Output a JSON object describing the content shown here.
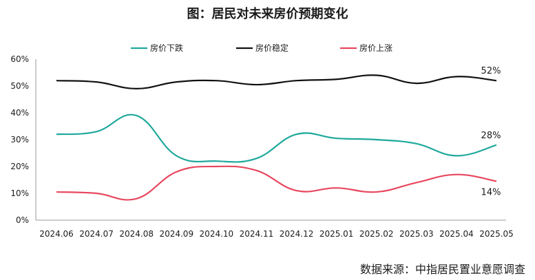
{
  "title": "图：居民对未来房价预期变化",
  "source": "数据来源：中指居民置业意愿调查",
  "chart_data": {
    "type": "line",
    "title": "图：居民对未来房价预期变化",
    "categories": [
      "2024.06",
      "2024.07",
      "2024.08",
      "2024.09",
      "2024.10",
      "2024.11",
      "2024.12",
      "2025.01",
      "2025.02",
      "2025.03",
      "2025.04",
      "2025.05"
    ],
    "ylim": [
      0,
      60
    ],
    "yticks": [
      "0%",
      "10%",
      "20%",
      "30%",
      "40%",
      "50%",
      "60%"
    ],
    "grid": false,
    "legend_position": "top-center",
    "series": [
      {
        "name": "房价下跌",
        "color": "#1ea89b",
        "values": [
          32,
          33,
          39,
          24,
          22,
          23,
          32,
          30.5,
          30,
          28.5,
          24,
          28
        ],
        "end_label": "28%"
      },
      {
        "name": "房价稳定",
        "color": "#111111",
        "values": [
          52,
          51.5,
          49,
          51.5,
          52,
          50.5,
          52,
          52.5,
          54,
          51,
          53.5,
          52
        ],
        "end_label": "52%"
      },
      {
        "name": "房价上涨",
        "color": "#e8475f",
        "values": [
          10.5,
          10,
          8,
          18,
          20,
          18.5,
          11,
          12,
          10.5,
          14,
          17,
          14.5
        ],
        "end_label": "14%"
      }
    ]
  }
}
